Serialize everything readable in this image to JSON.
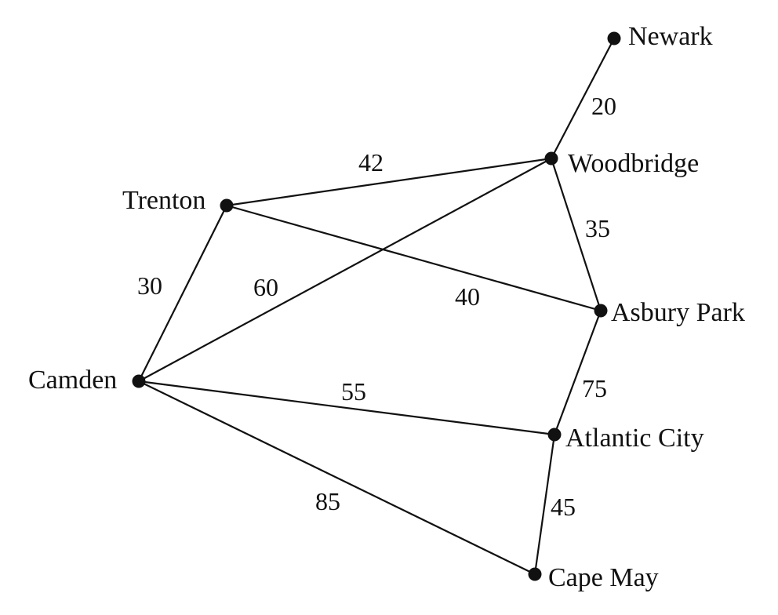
{
  "graph": {
    "nodes": [
      {
        "id": "newark",
        "label": "Newark"
      },
      {
        "id": "woodbridge",
        "label": "Woodbridge"
      },
      {
        "id": "trenton",
        "label": "Trenton"
      },
      {
        "id": "asbury",
        "label": "Asbury Park"
      },
      {
        "id": "camden",
        "label": "Camden"
      },
      {
        "id": "atlantic",
        "label": "Atlantic City"
      },
      {
        "id": "capemay",
        "label": "Cape May"
      }
    ],
    "edges": [
      {
        "id": "newark-woodbridge",
        "from": "newark",
        "to": "woodbridge",
        "weight": "20"
      },
      {
        "id": "trenton-woodbridge",
        "from": "trenton",
        "to": "woodbridge",
        "weight": "42"
      },
      {
        "id": "woodbridge-asbury",
        "from": "woodbridge",
        "to": "asbury",
        "weight": "35"
      },
      {
        "id": "trenton-camden",
        "from": "trenton",
        "to": "camden",
        "weight": "30"
      },
      {
        "id": "camden-woodbridge",
        "from": "camden",
        "to": "woodbridge",
        "weight": "60"
      },
      {
        "id": "trenton-asbury",
        "from": "trenton",
        "to": "asbury",
        "weight": "40"
      },
      {
        "id": "camden-atlantic",
        "from": "camden",
        "to": "atlantic",
        "weight": "55"
      },
      {
        "id": "asbury-atlantic",
        "from": "asbury",
        "to": "atlantic",
        "weight": "75"
      },
      {
        "id": "camden-capemay",
        "from": "camden",
        "to": "capemay",
        "weight": "85"
      },
      {
        "id": "atlantic-capemay",
        "from": "atlantic",
        "to": "capemay",
        "weight": "45"
      }
    ]
  }
}
